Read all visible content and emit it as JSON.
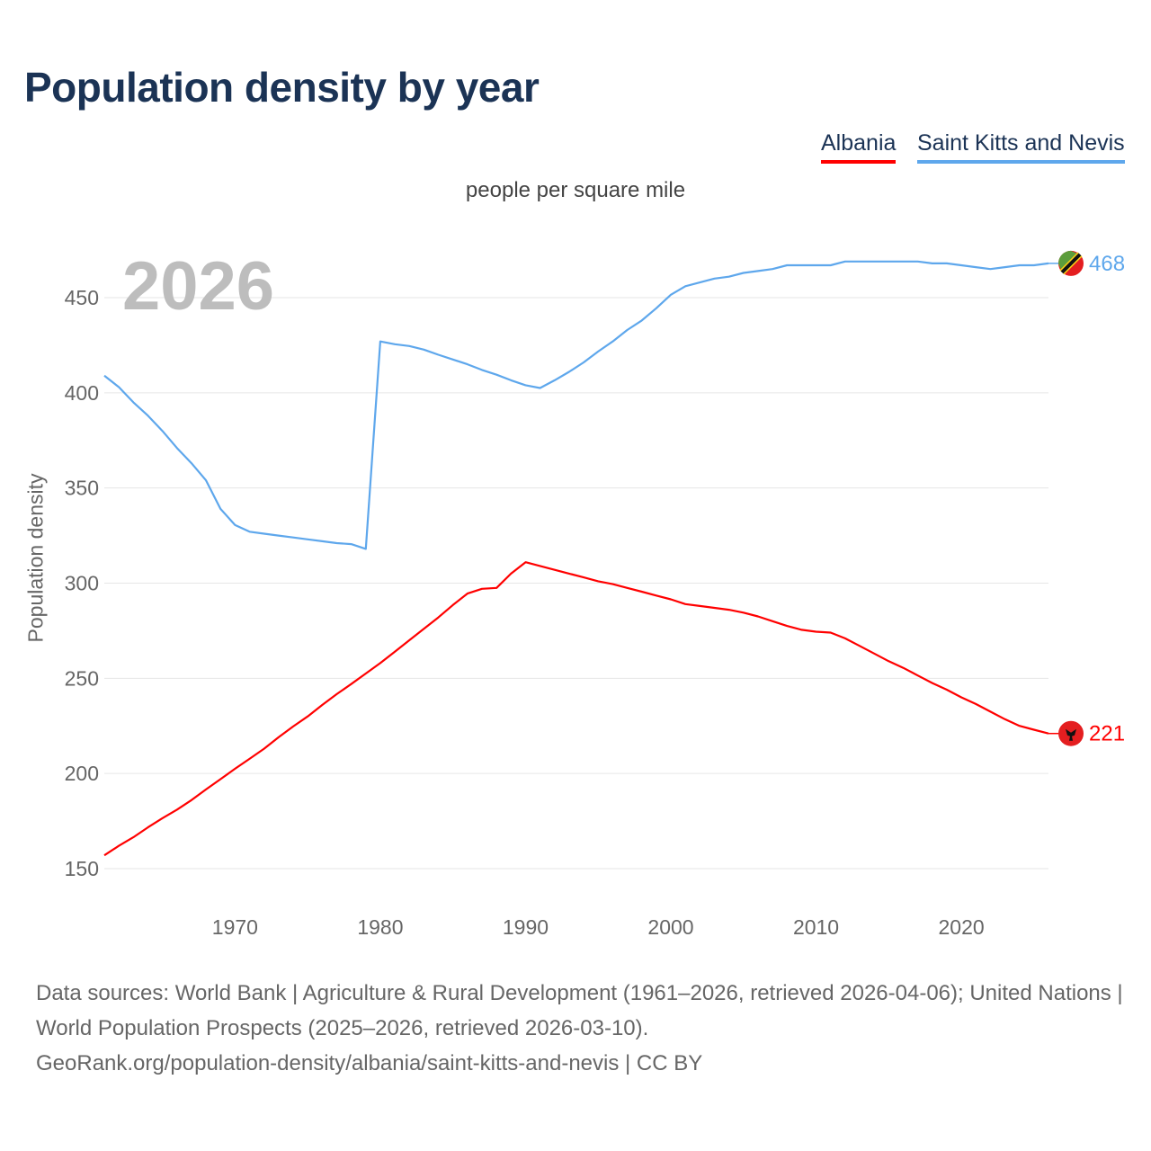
{
  "title": "Population density by year",
  "subtitle": "people per square mile",
  "current_year": "2026",
  "legend": [
    {
      "label": "Albania",
      "color": "#ff0000"
    },
    {
      "label": "Saint Kitts and Nevis",
      "color": "#5ea7ec"
    }
  ],
  "source_line1": "Data sources: World Bank | Agriculture & Rural Development (1961–2026, retrieved 2026-04-06); United Nations | World Population Prospects (2025–2026, retrieved 2026-03-10).",
  "source_line2": "GeoRank.org/population-density/albania/saint-kitts-and-nevis | CC BY",
  "chart_data": {
    "type": "line",
    "title": "Population density by year",
    "subtitle": "people per square mile",
    "xlabel": "",
    "ylabel": "Population density",
    "xlim": [
      1961,
      2026
    ],
    "ylim": [
      130,
      480
    ],
    "x_ticks": [
      1970,
      1980,
      1990,
      2000,
      2010,
      2020
    ],
    "y_ticks": [
      150,
      200,
      250,
      300,
      350,
      400,
      450
    ],
    "grid": true,
    "legend_position": "top-right",
    "x": [
      1961,
      1962,
      1963,
      1964,
      1965,
      1966,
      1967,
      1968,
      1969,
      1970,
      1971,
      1972,
      1973,
      1974,
      1975,
      1976,
      1977,
      1978,
      1979,
      1980,
      1981,
      1982,
      1983,
      1984,
      1985,
      1986,
      1987,
      1988,
      1989,
      1990,
      1991,
      1992,
      1993,
      1994,
      1995,
      1996,
      1997,
      1998,
      1999,
      2000,
      2001,
      2002,
      2003,
      2004,
      2005,
      2006,
      2007,
      2008,
      2009,
      2010,
      2011,
      2012,
      2013,
      2014,
      2015,
      2016,
      2017,
      2018,
      2019,
      2020,
      2021,
      2022,
      2023,
      2024,
      2025,
      2026
    ],
    "series": [
      {
        "name": "Albania",
        "color": "#ff0000",
        "end_label": "221",
        "values": [
          157,
          162,
          166.5,
          171.7,
          176.5,
          181,
          186,
          191.6,
          197,
          202.5,
          207.7,
          213,
          219,
          224.7,
          230,
          236,
          241.7,
          247,
          252.5,
          258,
          264,
          270,
          276,
          282,
          288.5,
          294.5,
          297,
          297.5,
          305,
          311,
          309,
          307,
          305,
          303,
          301,
          299.5,
          297.5,
          295.5,
          293.5,
          291.5,
          289,
          288,
          287,
          286,
          284.5,
          282.5,
          280,
          277.5,
          275.5,
          274.5,
          274,
          271,
          267,
          263,
          259,
          255.5,
          251.5,
          247.5,
          244,
          240,
          236.5,
          232.5,
          228.5,
          225,
          223,
          221
        ]
      },
      {
        "name": "Saint Kitts and Nevis",
        "color": "#5ea7ec",
        "end_label": "468",
        "values": [
          409,
          403,
          395,
          388,
          380,
          371,
          363,
          354,
          339,
          330.5,
          327,
          326,
          325,
          324,
          323,
          322,
          321,
          320.5,
          318,
          427,
          425.5,
          424.6,
          422.7,
          420,
          417.5,
          415,
          412,
          409.5,
          406.6,
          404,
          402.5,
          406.6,
          411,
          416,
          421.7,
          427,
          433,
          438,
          444.4,
          451.5,
          456,
          458,
          460,
          461,
          463,
          464,
          465,
          467,
          467,
          467,
          467,
          469,
          469,
          469,
          469,
          469,
          469,
          468,
          468,
          467,
          466,
          465,
          466,
          467,
          467,
          468
        ]
      }
    ]
  }
}
